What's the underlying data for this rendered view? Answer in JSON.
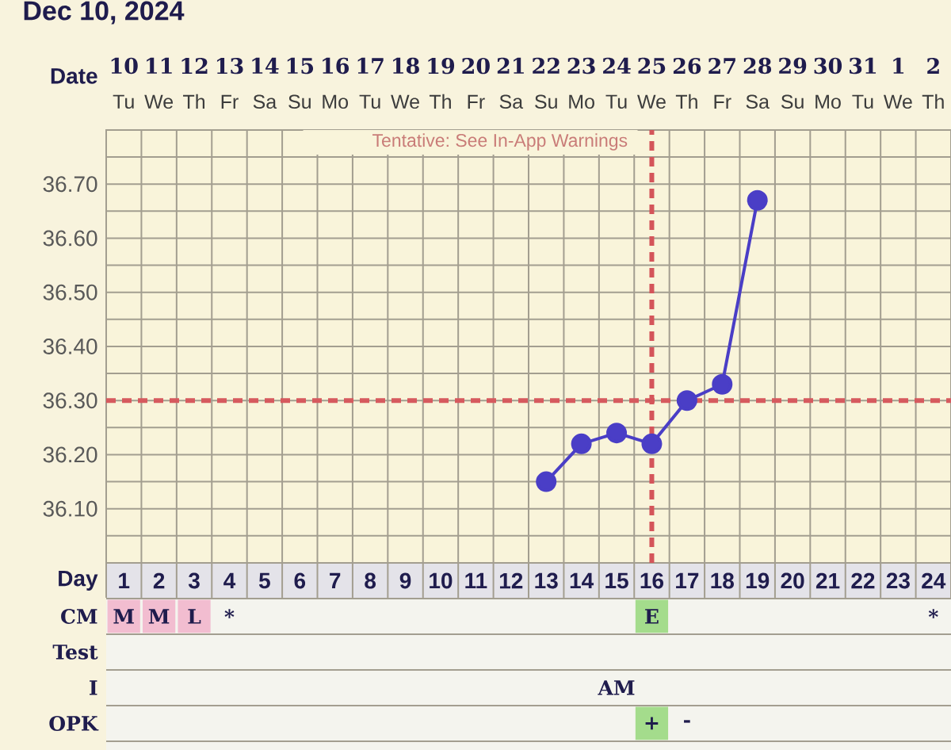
{
  "chart_data": [
    {
      "type": "line",
      "title": "Dec 10, 2024",
      "xlabel": "Day",
      "x2label": "Date",
      "x": [
        13,
        14,
        15,
        16,
        17,
        18,
        19
      ],
      "values": [
        36.15,
        36.22,
        36.24,
        36.22,
        36.3,
        36.33,
        36.67
      ],
      "color": "#4a3ec6",
      "marker": "circle",
      "xlim": [
        0.5,
        24.5
      ],
      "xticks": [
        1,
        2,
        3,
        4,
        5,
        6,
        7,
        8,
        9,
        10,
        11,
        12,
        13,
        14,
        15,
        16,
        17,
        18,
        19,
        20,
        21,
        22,
        23,
        24
      ],
      "x2lim": [
        "2024-12-09T12:00",
        "2025-01-02T12:00"
      ],
      "x2ticks": [
        {
          "value": "2024-12-10",
          "label": "**10** Tu"
        },
        {
          "value": "2024-12-11",
          "label": "**11** We"
        },
        {
          "value": "2024-12-12",
          "label": "**12** Th"
        },
        {
          "value": "2024-12-13",
          "label": "**13** Fr"
        },
        {
          "value": "2024-12-14",
          "label": "**14** Sa"
        },
        {
          "value": "2024-12-15",
          "label": "**15** Su"
        },
        {
          "value": "2024-12-16",
          "label": "**16** Mo"
        },
        {
          "value": "2024-12-17",
          "label": "**17** Tu"
        },
        {
          "value": "2024-12-18",
          "label": "**18** We"
        },
        {
          "value": "2024-12-19",
          "label": "**19** Th"
        },
        {
          "value": "2024-12-20",
          "label": "**20** Fr"
        },
        {
          "value": "2024-12-21",
          "label": "**21** Sa"
        },
        {
          "value": "2024-12-22",
          "label": "**22** Su"
        },
        {
          "value": "2024-12-23",
          "label": "**23** Mo"
        },
        {
          "value": "2024-12-24",
          "label": "**24** Tu"
        },
        {
          "value": "2024-12-25",
          "label": "**25** We"
        },
        {
          "value": "2024-12-26",
          "label": "**26** Th"
        },
        {
          "value": "2024-12-27",
          "label": "**27** Fr"
        },
        {
          "value": "2024-12-28",
          "label": "**28** Sa"
        },
        {
          "value": "2024-12-29",
          "label": "**29** Su"
        },
        {
          "value": "2024-12-30",
          "label": "**30** Mo"
        },
        {
          "value": "2024-12-31",
          "label": "**31** Tu"
        },
        {
          "value": "2025-01-01",
          "label": "**1** We"
        },
        {
          "value": "2025-01-02",
          "label": "**2** Th"
        }
      ],
      "ylim": [
        36.0,
        36.8
      ],
      "yticks": [
        {
          "value": 36.05,
          "label": null
        },
        {
          "value": 36.1,
          "label": "36.10"
        },
        {
          "value": 36.15,
          "label": null
        },
        {
          "value": 36.2,
          "label": "36.20"
        },
        {
          "value": 36.25,
          "label": null
        },
        {
          "value": 36.3,
          "label": "36.30"
        },
        {
          "value": 36.35,
          "label": null
        },
        {
          "value": 36.4,
          "label": "36.40"
        },
        {
          "value": 36.45,
          "label": null
        },
        {
          "value": 36.5,
          "label": "36.50"
        },
        {
          "value": 36.55,
          "label": null
        },
        {
          "value": 36.6,
          "label": "36.60"
        },
        {
          "value": 36.65,
          "label": null
        },
        {
          "value": 36.7,
          "label": "36.70"
        },
        {
          "value": 36.75,
          "label": null
        }
      ],
      "grid": true,
      "ref_lines": [
        {
          "axis": "y",
          "value": 36.3,
          "color": "#d65a5e",
          "line_style": "dashed"
        },
        {
          "axis": "x",
          "value": 16,
          "color": "#d4555a",
          "line_style": "dashed"
        }
      ],
      "annotations": [
        "Tentative: See In-App Warnings"
      ]
    },
    {
      "type": "other",
      "y_categories": [
        "CM",
        "Test",
        "I",
        "OPK"
      ],
      "cell_labels": [
        [
          "M",
          "M",
          "L",
          "*",
          null,
          null,
          null,
          null,
          null,
          null,
          null,
          null,
          null,
          null,
          null,
          "E",
          null,
          null,
          null,
          null,
          null,
          null,
          null,
          "*"
        ],
        [
          null,
          null,
          null,
          null,
          null,
          null,
          null,
          null,
          null,
          null,
          null,
          null,
          null,
          null,
          null,
          null,
          null,
          null,
          null,
          null,
          null,
          null,
          null,
          null
        ],
        [
          null,
          null,
          null,
          null,
          null,
          null,
          null,
          null,
          null,
          null,
          null,
          null,
          null,
          null,
          "AM",
          null,
          null,
          null,
          null,
          null,
          null,
          null,
          null,
          null
        ],
        [
          null,
          null,
          null,
          null,
          null,
          null,
          null,
          null,
          null,
          null,
          null,
          null,
          null,
          null,
          null,
          "+",
          "-",
          null,
          null,
          null,
          null,
          null,
          null,
          null
        ]
      ],
      "colors": [
        [
          "#f2bdd0",
          "#f2bdd0",
          "#f2bdd0",
          null,
          null,
          null,
          null,
          null,
          null,
          null,
          null,
          null,
          null,
          null,
          null,
          "#a4dc8c",
          null,
          null,
          null,
          null,
          null,
          null,
          null,
          null
        ],
        [
          null,
          null,
          null,
          null,
          null,
          null,
          null,
          null,
          null,
          null,
          null,
          null,
          null,
          null,
          null,
          null,
          null,
          null,
          null,
          null,
          null,
          null,
          null,
          null
        ],
        [
          null,
          null,
          null,
          null,
          null,
          null,
          null,
          null,
          null,
          null,
          null,
          null,
          null,
          null,
          null,
          null,
          null,
          null,
          null,
          null,
          null,
          null,
          null,
          null
        ],
        [
          null,
          null,
          null,
          null,
          null,
          null,
          null,
          null,
          null,
          null,
          null,
          null,
          null,
          null,
          null,
          "#a4dc8c",
          null,
          null,
          null,
          null,
          null,
          null,
          null,
          null
        ]
      ]
    }
  ]
}
